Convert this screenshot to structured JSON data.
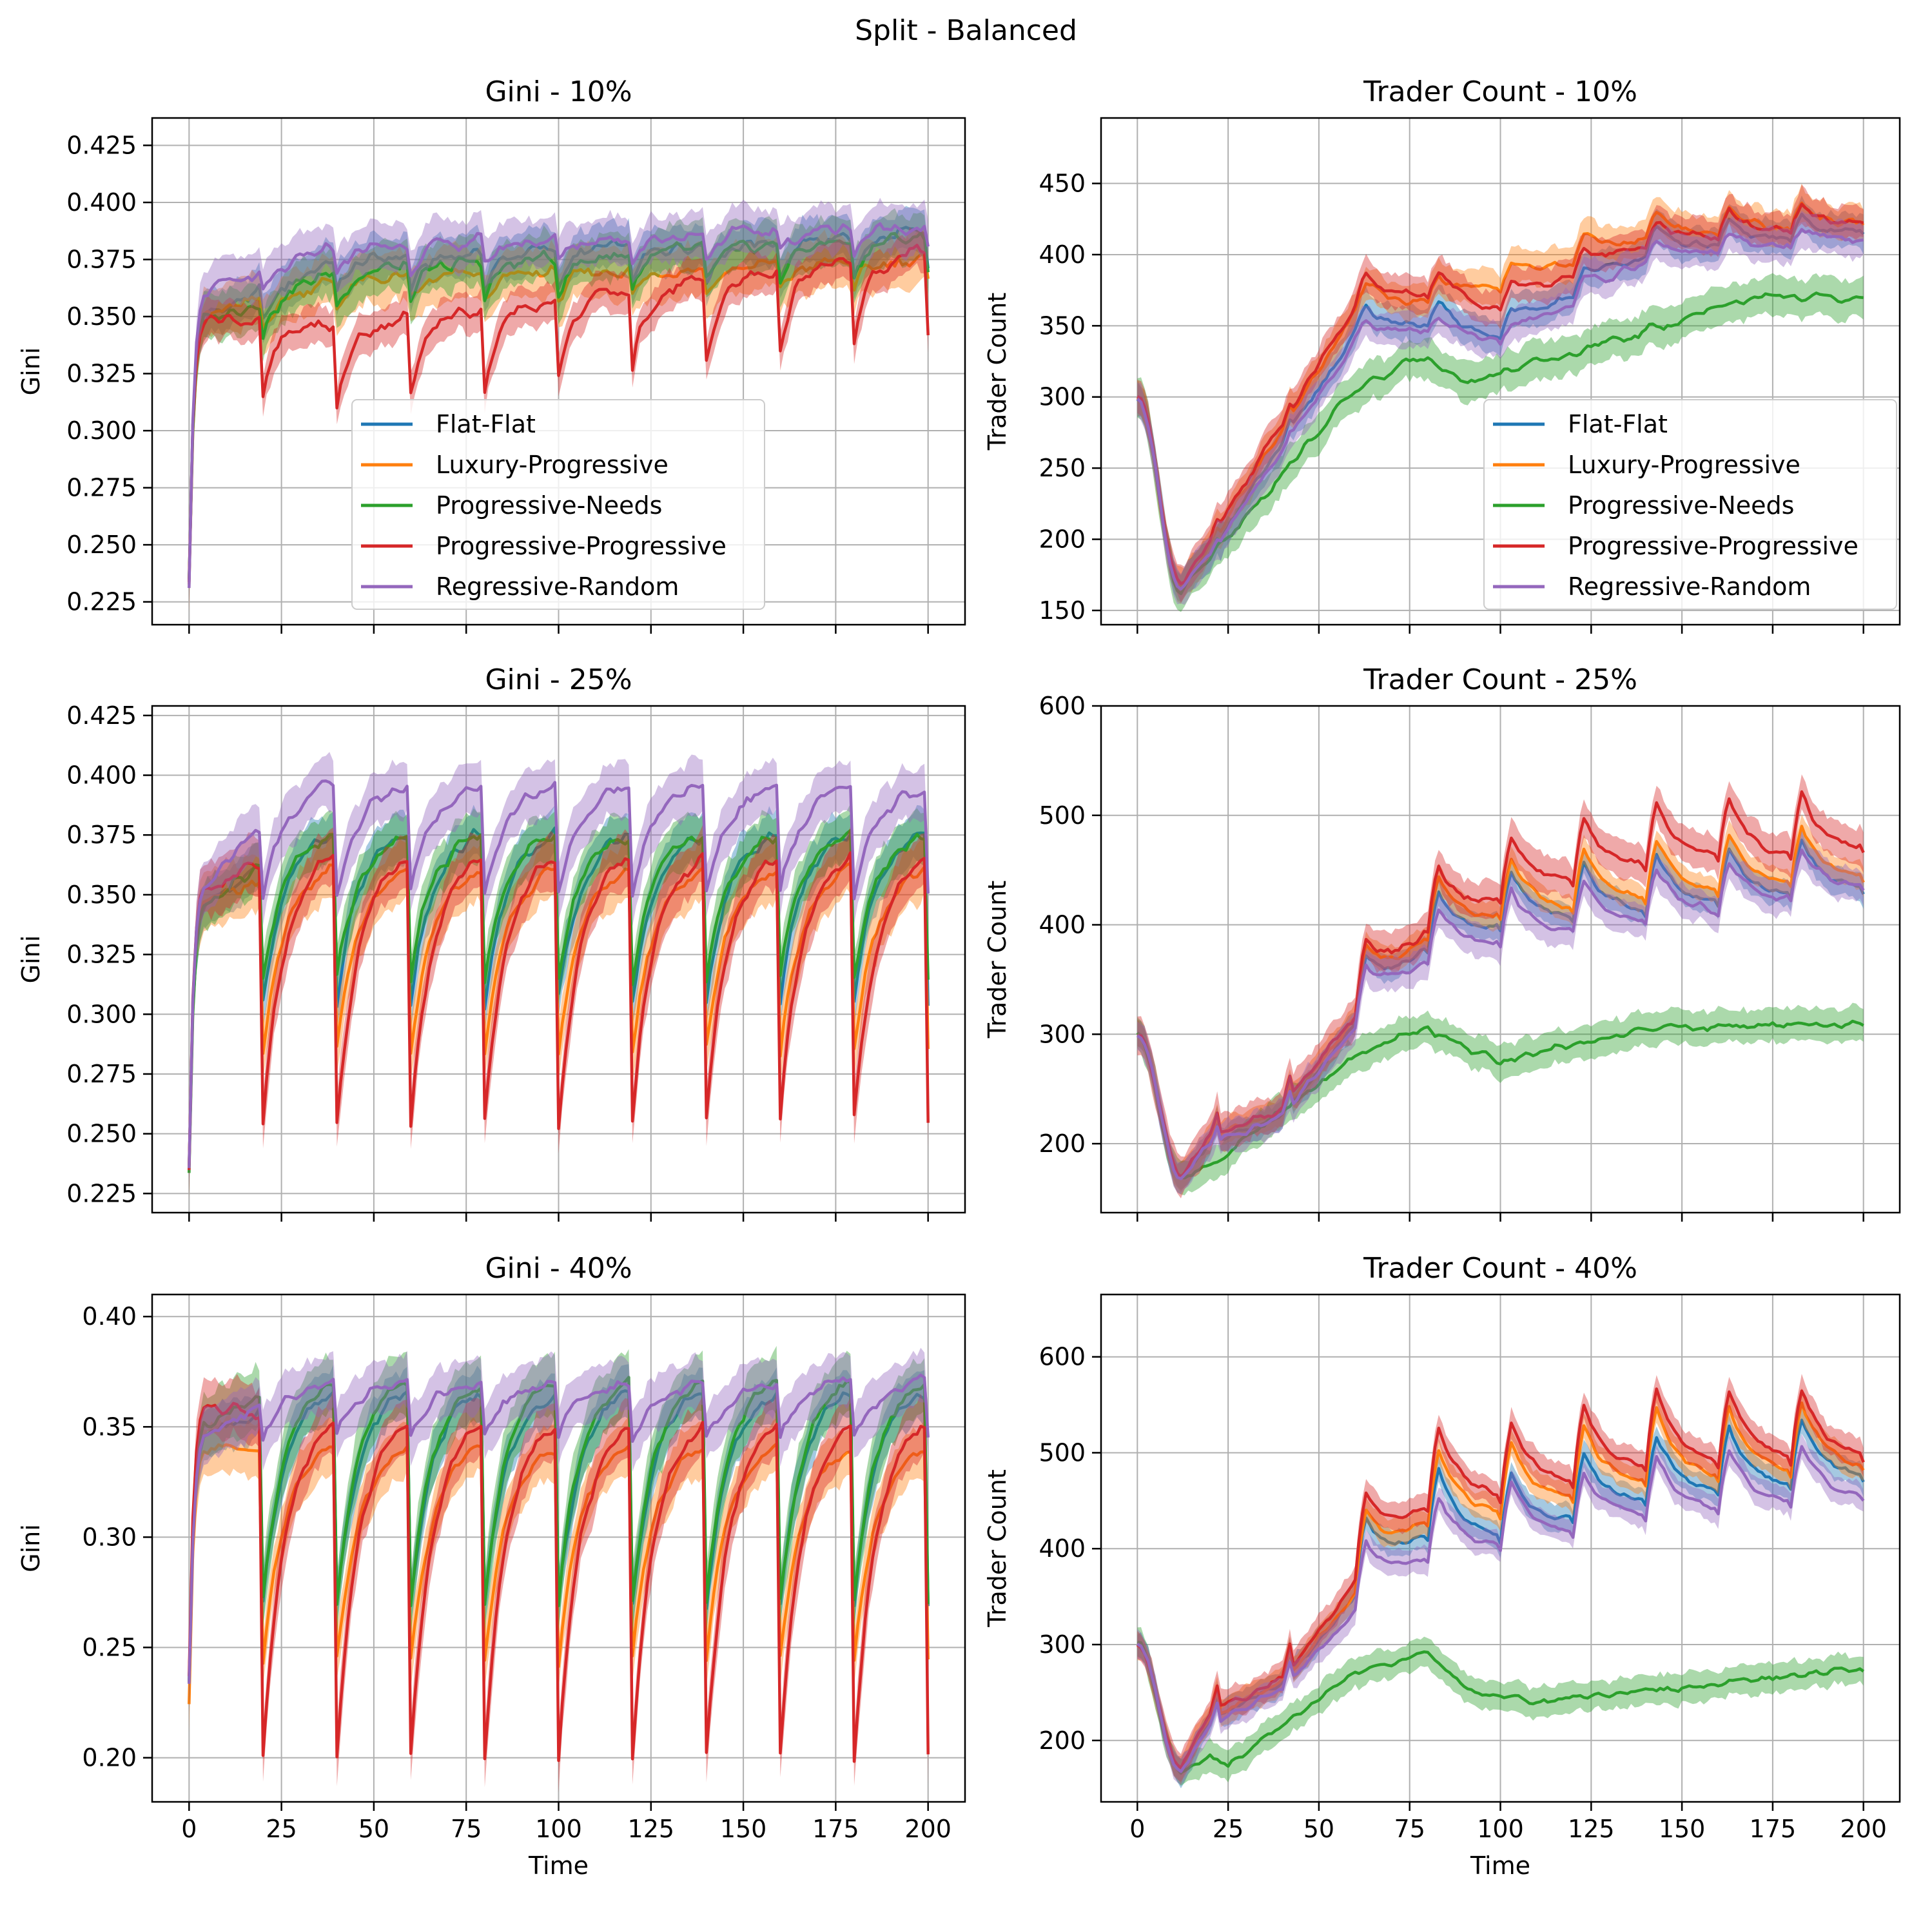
{
  "figure": {
    "suptitle": "Split - Balanced"
  },
  "colors": {
    "Flat-Flat": "#1f77b4",
    "Luxury-Progressive": "#ff7f0e",
    "Progressive-Needs": "#2ca02c",
    "Progressive-Progressive": "#d62728",
    "Regressive-Random": "#9467bd"
  },
  "legend": [
    "Flat-Flat",
    "Luxury-Progressive",
    "Progressive-Needs",
    "Progressive-Progressive",
    "Regressive-Random"
  ],
  "chart_data": [
    {
      "type": "line",
      "title": "Gini - 10%",
      "xlabel": "",
      "ylabel": "Gini",
      "xlim": [
        -10,
        210
      ],
      "ylim": [
        0.215,
        0.437
      ],
      "xticks": [
        0,
        25,
        50,
        75,
        100,
        125,
        150,
        175,
        200
      ],
      "xtick_labels_visible": false,
      "yticks": [
        0.225,
        0.25,
        0.275,
        0.3,
        0.325,
        0.35,
        0.375,
        0.4,
        0.425
      ],
      "ytick_labels": [
        "0.225",
        "0.250",
        "0.275",
        "0.300",
        "0.325",
        "0.350",
        "0.375",
        "0.400",
        "0.425"
      ],
      "grid": true,
      "legend_position": "bottom-center",
      "shaded_bands": true,
      "series": [
        {
          "name": "Flat-Flat",
          "profile": "step",
          "base": [
            0.235,
            0.35,
            0.375,
            0.386
          ],
          "drop": 0.015,
          "band": 0.011
        },
        {
          "name": "Luxury-Progressive",
          "profile": "step",
          "base": [
            0.235,
            0.35,
            0.366,
            0.375
          ],
          "drop": 0.012,
          "band": 0.013
        },
        {
          "name": "Progressive-Needs",
          "profile": "step",
          "base": [
            0.235,
            0.348,
            0.37,
            0.385
          ],
          "drop": 0.015,
          "band": 0.012
        },
        {
          "name": "Progressive-Progressive",
          "profile": "step",
          "base": [
            0.235,
            0.35,
            0.345,
            0.378
          ],
          "drop": 0.035,
          "band": 0.01
        },
        {
          "name": "Regressive-Random",
          "profile": "step",
          "base": [
            0.235,
            0.36,
            0.38,
            0.39
          ],
          "drop": 0.01,
          "band": 0.012
        }
      ]
    },
    {
      "type": "line",
      "title": "Trader Count - 10%",
      "xlabel": "",
      "ylabel": "Trader Count",
      "xlim": [
        -10,
        210
      ],
      "ylim": [
        140,
        496
      ],
      "xticks": [
        0,
        25,
        50,
        75,
        100,
        125,
        150,
        175,
        200
      ],
      "xtick_labels_visible": false,
      "yticks": [
        150,
        200,
        250,
        300,
        350,
        400,
        450
      ],
      "ytick_labels": [
        "150",
        "200",
        "250",
        "300",
        "350",
        "400",
        "450"
      ],
      "grid": true,
      "legend_position": "lower-right",
      "shaded_bands": true,
      "series": [
        {
          "name": "Flat-Flat",
          "profile": "count",
          "min": 165,
          "trend": [
            [
              20,
              190
            ],
            [
              60,
              345
            ],
            [
              80,
              350
            ],
            [
              100,
              340
            ],
            [
              140,
              400
            ],
            [
              200,
              415
            ]
          ],
          "spike": 25,
          "band": 14
        },
        {
          "name": "Luxury-Progressive",
          "profile": "count",
          "min": 168,
          "trend": [
            [
              20,
              195
            ],
            [
              60,
              360
            ],
            [
              80,
              365
            ],
            [
              100,
              375
            ],
            [
              140,
              410
            ],
            [
              200,
              420
            ]
          ],
          "spike": 30,
          "band": 14
        },
        {
          "name": "Progressive-Needs",
          "profile": "count",
          "min": 165,
          "trend": [
            [
              20,
              188
            ],
            [
              60,
              305
            ],
            [
              80,
              330
            ],
            [
              90,
              310
            ],
            [
              120,
              330
            ],
            [
              170,
              370
            ],
            [
              200,
              370
            ]
          ],
          "spike": 0,
          "band": 16
        },
        {
          "name": "Progressive-Progressive",
          "profile": "count",
          "min": 170,
          "trend": [
            [
              20,
              200
            ],
            [
              60,
              365
            ],
            [
              80,
              370
            ],
            [
              100,
              360
            ],
            [
              140,
              405
            ],
            [
              200,
              420
            ]
          ],
          "spike": 30,
          "band": 14
        },
        {
          "name": "Regressive-Random",
          "profile": "count",
          "min": 165,
          "trend": [
            [
              20,
              188
            ],
            [
              60,
              340
            ],
            [
              80,
              345
            ],
            [
              100,
              335
            ],
            [
              140,
              395
            ],
            [
              200,
              410
            ]
          ],
          "spike": 20,
          "band": 14
        }
      ]
    },
    {
      "type": "line",
      "title": "Gini - 25%",
      "xlabel": "",
      "ylabel": "Gini",
      "xlim": [
        -10,
        210
      ],
      "ylim": [
        0.217,
        0.429
      ],
      "xticks": [
        0,
        25,
        50,
        75,
        100,
        125,
        150,
        175,
        200
      ],
      "xtick_labels_visible": false,
      "yticks": [
        0.225,
        0.25,
        0.275,
        0.3,
        0.325,
        0.35,
        0.375,
        0.4,
        0.425
      ],
      "ytick_labels": [
        "0.225",
        "0.250",
        "0.275",
        "0.300",
        "0.325",
        "0.350",
        "0.375",
        "0.400",
        "0.425"
      ],
      "grid": true,
      "shaded_bands": true,
      "series": [
        {
          "name": "Flat-Flat",
          "profile": "saw",
          "base": [
            0.235,
            0.345
          ],
          "low": 0.305,
          "high": 0.375,
          "band": 0.012
        },
        {
          "name": "Luxury-Progressive",
          "profile": "saw",
          "base": [
            0.235,
            0.35
          ],
          "low": 0.285,
          "high": 0.36,
          "band": 0.014
        },
        {
          "name": "Progressive-Needs",
          "profile": "saw",
          "base": [
            0.235,
            0.345
          ],
          "low": 0.315,
          "high": 0.375,
          "band": 0.012
        },
        {
          "name": "Progressive-Progressive",
          "profile": "saw",
          "base": [
            0.235,
            0.355
          ],
          "low": 0.255,
          "high": 0.365,
          "band": 0.013
        },
        {
          "name": "Regressive-Random",
          "profile": "saw",
          "base": [
            0.235,
            0.355
          ],
          "low": 0.35,
          "high": 0.395,
          "band": 0.013
        }
      ]
    },
    {
      "type": "line",
      "title": "Trader Count - 25%",
      "xlabel": "",
      "ylabel": "Trader Count",
      "xlim": [
        -10,
        210
      ],
      "ylim": [
        137,
        600
      ],
      "xticks": [
        0,
        25,
        50,
        75,
        100,
        125,
        150,
        175,
        200
      ],
      "xtick_labels_visible": false,
      "yticks": [
        200,
        300,
        400,
        500,
        600
      ],
      "ytick_labels": [
        "200",
        "300",
        "400",
        "500",
        "600"
      ],
      "grid": true,
      "shaded_bands": true,
      "series": [
        {
          "name": "Flat-Flat",
          "profile": "count",
          "min": 168,
          "trend": [
            [
              20,
              200
            ],
            [
              40,
              225
            ],
            [
              60,
              310
            ],
            [
              80,
              375
            ],
            [
              100,
              395
            ],
            [
              140,
              410
            ],
            [
              200,
              430
            ]
          ],
          "spike": 80,
          "band": 14
        },
        {
          "name": "Luxury-Progressive",
          "profile": "count",
          "min": 170,
          "trend": [
            [
              20,
              205
            ],
            [
              40,
              230
            ],
            [
              60,
              315
            ],
            [
              80,
              385
            ],
            [
              100,
              405
            ],
            [
              140,
              420
            ],
            [
              200,
              440
            ]
          ],
          "spike": 85,
          "band": 14
        },
        {
          "name": "Progressive-Needs",
          "profile": "count",
          "min": 168,
          "trend": [
            [
              20,
              180
            ],
            [
              60,
              280
            ],
            [
              80,
              305
            ],
            [
              100,
              275
            ],
            [
              140,
              305
            ],
            [
              200,
              310
            ]
          ],
          "spike": 0,
          "band": 18
        },
        {
          "name": "Progressive-Progressive",
          "profile": "count",
          "min": 172,
          "trend": [
            [
              20,
              205
            ],
            [
              40,
              232
            ],
            [
              60,
              318
            ],
            [
              80,
              390
            ],
            [
              100,
              420
            ],
            [
              140,
              450
            ],
            [
              200,
              465
            ]
          ],
          "spike": 90,
          "band": 20
        },
        {
          "name": "Regressive-Random",
          "profile": "count",
          "min": 168,
          "trend": [
            [
              20,
              200
            ],
            [
              40,
              225
            ],
            [
              60,
              305
            ],
            [
              80,
              365
            ],
            [
              100,
              380
            ],
            [
              140,
              400
            ],
            [
              200,
              430
            ]
          ],
          "spike": 75,
          "band": 18
        }
      ]
    },
    {
      "type": "line",
      "title": "Gini - 40%",
      "xlabel": "Time",
      "ylabel": "Gini",
      "xlim": [
        -10,
        210
      ],
      "ylim": [
        0.18,
        0.41
      ],
      "xticks": [
        0,
        25,
        50,
        75,
        100,
        125,
        150,
        175,
        200
      ],
      "xtick_labels_visible": true,
      "xtick_labels": [
        "0",
        "25",
        "50",
        "75",
        "100",
        "125",
        "150",
        "175",
        "200"
      ],
      "yticks": [
        0.2,
        0.25,
        0.3,
        0.35,
        0.4
      ],
      "ytick_labels": [
        "0.20",
        "0.25",
        "0.30",
        "0.35",
        "0.40"
      ],
      "grid": true,
      "shaded_bands": true,
      "series": [
        {
          "name": "Flat-Flat",
          "profile": "saw",
          "base": [
            0.235,
            0.345
          ],
          "low": 0.27,
          "high": 0.365,
          "band": 0.013
        },
        {
          "name": "Luxury-Progressive",
          "profile": "saw",
          "base": [
            0.225,
            0.34
          ],
          "low": 0.245,
          "high": 0.34,
          "band": 0.014
        },
        {
          "name": "Progressive-Needs",
          "profile": "saw",
          "base": [
            0.235,
            0.35
          ],
          "low": 0.27,
          "high": 0.37,
          "band": 0.016
        },
        {
          "name": "Progressive-Progressive",
          "profile": "saw",
          "base": [
            0.235,
            0.36
          ],
          "low": 0.2,
          "high": 0.35,
          "band": 0.015
        },
        {
          "name": "Regressive-Random",
          "profile": "saw",
          "base": [
            0.235,
            0.345
          ],
          "low": 0.345,
          "high": 0.37,
          "band": 0.014
        }
      ]
    },
    {
      "type": "line",
      "title": "Trader Count - 40%",
      "xlabel": "Time",
      "ylabel": "Trader Count",
      "xlim": [
        -10,
        210
      ],
      "ylim": [
        136,
        665
      ],
      "xticks": [
        0,
        25,
        50,
        75,
        100,
        125,
        150,
        175,
        200
      ],
      "xtick_labels_visible": true,
      "xtick_labels": [
        "0",
        "25",
        "50",
        "75",
        "100",
        "125",
        "150",
        "175",
        "200"
      ],
      "yticks": [
        200,
        300,
        400,
        500,
        600
      ],
      "ytick_labels": [
        "200",
        "300",
        "400",
        "500",
        "600"
      ],
      "grid": true,
      "shaded_bands": true,
      "series": [
        {
          "name": "Flat-Flat",
          "profile": "count",
          "min": 168,
          "trend": [
            [
              20,
              220
            ],
            [
              40,
              260
            ],
            [
              60,
              350
            ],
            [
              80,
              410
            ],
            [
              100,
              405
            ],
            [
              140,
              445
            ],
            [
              200,
              470
            ]
          ],
          "spike": 110,
          "band": 16
        },
        {
          "name": "Luxury-Progressive",
          "profile": "count",
          "min": 170,
          "trend": [
            [
              20,
              225
            ],
            [
              40,
              262
            ],
            [
              60,
              352
            ],
            [
              80,
              425
            ],
            [
              100,
              430
            ],
            [
              140,
              465
            ],
            [
              200,
              480
            ]
          ],
          "spike": 120,
          "band": 16
        },
        {
          "name": "Progressive-Needs",
          "profile": "count",
          "min": 168,
          "trend": [
            [
              20,
              185
            ],
            [
              25,
              175
            ],
            [
              60,
              270
            ],
            [
              80,
              290
            ],
            [
              90,
              255
            ],
            [
              110,
              240
            ],
            [
              200,
              275
            ]
          ],
          "spike": 0,
          "band": 18
        },
        {
          "name": "Progressive-Progressive",
          "profile": "count",
          "min": 172,
          "trend": [
            [
              20,
              228
            ],
            [
              40,
              265
            ],
            [
              60,
              365
            ],
            [
              80,
              440
            ],
            [
              100,
              450
            ],
            [
              140,
              480
            ],
            [
              200,
              490
            ]
          ],
          "spike": 125,
          "band": 18
        },
        {
          "name": "Regressive-Random",
          "profile": "count",
          "min": 168,
          "trend": [
            [
              20,
              215
            ],
            [
              40,
              255
            ],
            [
              60,
              335
            ],
            [
              80,
              385
            ],
            [
              100,
              400
            ],
            [
              140,
              430
            ],
            [
              200,
              450
            ]
          ],
          "spike": 100,
          "band": 16
        }
      ]
    }
  ]
}
